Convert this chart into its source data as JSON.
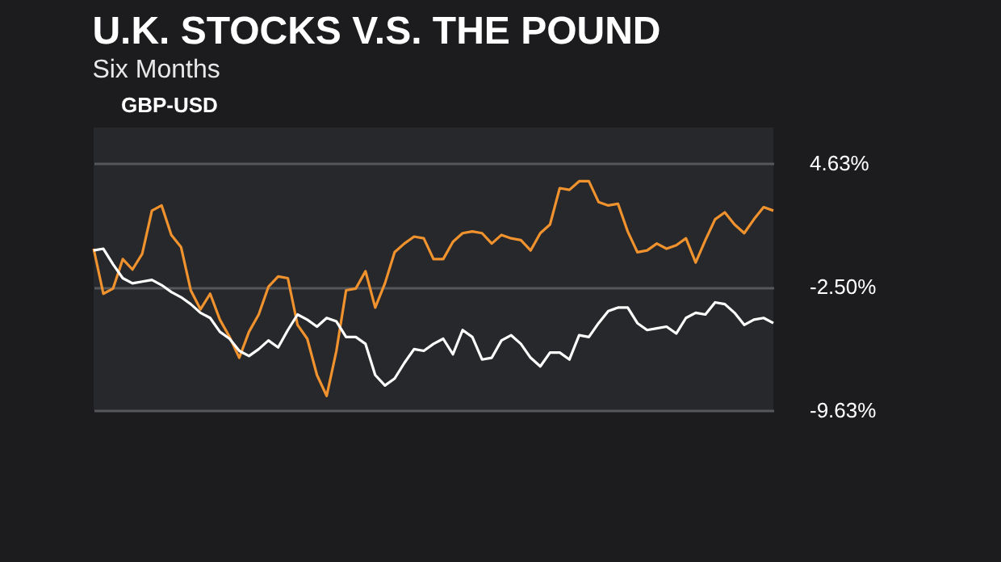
{
  "chart_data": {
    "type": "line",
    "title": "U.K. STOCKS V.S. THE POUND",
    "subtitle": "Six Months",
    "categories": [
      null,
      null,
      null,
      null,
      null,
      null,
      null,
      null,
      null,
      null,
      null,
      null,
      null,
      null,
      null,
      null,
      null,
      null,
      null,
      null,
      null,
      null,
      null,
      null,
      null,
      null,
      null,
      null,
      null,
      null,
      null,
      null,
      null,
      null,
      null,
      null,
      null,
      null,
      null,
      null,
      null,
      null,
      null,
      null,
      null,
      null,
      null,
      null,
      null,
      null,
      null,
      null,
      null,
      null,
      null,
      null,
      null,
      null,
      null,
      null,
      null,
      null,
      null,
      null,
      null,
      null,
      null,
      null,
      null,
      null,
      null
    ],
    "series": [
      {
        "color": "#f0922e",
        "values": [
          -0.3,
          -2.9,
          -2.6,
          -0.9,
          -1.5,
          -0.6,
          1.9,
          2.2,
          0.5,
          -0.2,
          -2.7,
          -3.8,
          -2.9,
          -4.4,
          -5.4,
          -6.6,
          -5.1,
          -4.1,
          -2.5,
          -1.9,
          -2.0,
          -4.7,
          -5.5,
          -7.6,
          -8.8,
          -6.2,
          -2.7,
          -2.6,
          -1.6,
          -3.7,
          -2.3,
          -0.5,
          0.0,
          0.4,
          0.3,
          -0.9,
          -0.9,
          0.1,
          0.6,
          0.7,
          0.6,
          0.0,
          0.5,
          0.3,
          0.2,
          -0.4,
          0.6,
          1.1,
          3.2,
          3.1,
          3.6,
          3.6,
          2.4,
          2.2,
          2.3,
          0.7,
          -0.5,
          -0.4,
          0.0,
          -0.3,
          -0.1,
          0.3,
          -1.1,
          0.2,
          1.4,
          1.8,
          1.1,
          0.6,
          1.4,
          2.1,
          1.9
        ]
      },
      {
        "name": "GBP-USD",
        "color": "#ffffff",
        "values": [
          -0.4,
          -0.3,
          -1.2,
          -2.0,
          -2.3,
          -2.2,
          -2.1,
          -2.4,
          -2.8,
          -3.1,
          -3.5,
          -4.0,
          -4.3,
          -5.1,
          -5.5,
          -6.2,
          -6.5,
          -6.1,
          -5.6,
          -6.0,
          -5.0,
          -4.1,
          -4.4,
          -4.8,
          -4.3,
          -4.5,
          -5.4,
          -5.4,
          -5.8,
          -7.6,
          -8.2,
          -7.8,
          -6.9,
          -6.1,
          -6.2,
          -5.8,
          -5.5,
          -6.4,
          -5.0,
          -5.4,
          -6.7,
          -6.6,
          -5.6,
          -5.3,
          -5.8,
          -6.6,
          -7.1,
          -6.3,
          -6.3,
          -6.7,
          -5.3,
          -5.4,
          -4.6,
          -3.9,
          -3.7,
          -3.7,
          -4.6,
          -5.0,
          -4.9,
          -4.8,
          -5.2,
          -4.3,
          -4.0,
          -4.1,
          -3.4,
          -3.5,
          -4.0,
          -4.7,
          -4.4,
          -4.3,
          -4.6
        ]
      }
    ],
    "ylim": [
      -9.63,
      6.7
    ],
    "yticks": [
      {
        "value": 4.63,
        "label": "4.63%"
      },
      {
        "value": -2.5,
        "label": "-2.50%"
      },
      {
        "value": -9.63,
        "label": "-9.63%"
      }
    ],
    "grid": "y",
    "legend": "top left"
  }
}
